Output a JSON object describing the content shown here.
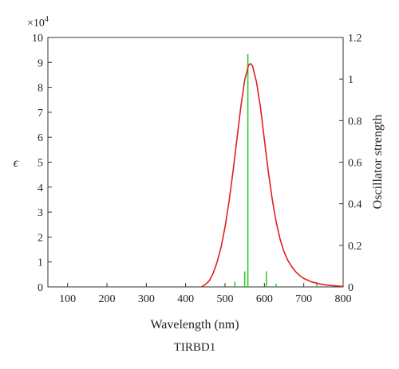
{
  "chart_data": {
    "type": "line",
    "caption": "TIRBD1",
    "xlabel": "Wavelength (nm)",
    "ylabel_left": "ϵ",
    "ylabel_right": "Oscillator strength",
    "y_multiplier": "×10",
    "y_multiplier_exp": "4",
    "xlim": [
      50,
      800
    ],
    "ylim_left": [
      0,
      10
    ],
    "ylim_right": [
      0,
      1.2
    ],
    "x_ticks": [
      100,
      200,
      300,
      400,
      500,
      600,
      700,
      800
    ],
    "y_left_ticks": [
      0,
      1,
      2,
      3,
      4,
      5,
      6,
      7,
      8,
      9,
      10
    ],
    "y_right_ticks": [
      "0",
      "0.2",
      "0.4",
      "0.6",
      "0.8",
      "1",
      "1.2"
    ],
    "grid": false,
    "colors": {
      "spectrum": "#e02020",
      "sticks": "#22cc22",
      "axes": "#333333"
    },
    "series": [
      {
        "type": "line",
        "axis": "left",
        "x": [
          440,
          450,
          460,
          470,
          480,
          490,
          500,
          510,
          520,
          530,
          540,
          550,
          560,
          565,
          570,
          580,
          590,
          600,
          610,
          620,
          630,
          640,
          650,
          660,
          670,
          680,
          690,
          700,
          720,
          740,
          760,
          780,
          800
        ],
        "y": [
          0.0,
          0.1,
          0.25,
          0.55,
          1.0,
          1.6,
          2.4,
          3.4,
          4.6,
          5.9,
          7.2,
          8.3,
          8.9,
          8.95,
          8.85,
          8.2,
          7.2,
          5.9,
          4.6,
          3.5,
          2.6,
          1.9,
          1.4,
          1.05,
          0.8,
          0.6,
          0.45,
          0.34,
          0.2,
          0.12,
          0.07,
          0.04,
          0.02
        ]
      },
      {
        "type": "stick",
        "axis": "right",
        "x": [
          525,
          550,
          558,
          605,
          630,
          733
        ],
        "y": [
          0.025,
          0.075,
          1.12,
          0.075,
          0.015,
          0.02
        ]
      }
    ]
  }
}
